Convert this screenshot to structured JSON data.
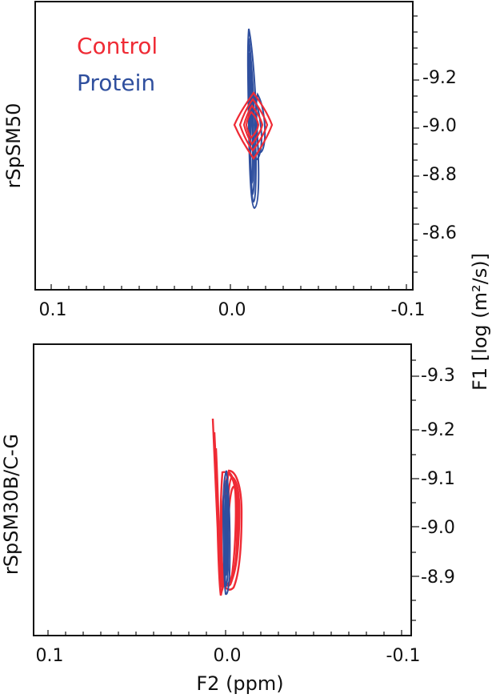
{
  "colors": {
    "control": "#ef2b35",
    "protein": "#2f4f9e",
    "axis": "#111111"
  },
  "legend": [
    {
      "label": "Control",
      "color": "#ef2b35"
    },
    {
      "label": "Protein",
      "color": "#2f4f9e"
    }
  ],
  "shared_axes": {
    "xlabel": "F2 (ppm)",
    "ylabel": "F1 [log (m²/s)]"
  },
  "chart_data": [
    {
      "type": "contour",
      "panel_label": "rSpSM50",
      "panel_label_color": "#2f4f9e",
      "xlim": [
        0.1,
        -0.1
      ],
      "ylim": [
        -9.43,
        -8.41
      ],
      "x_ticks": [
        "0.1",
        "0.0",
        "-0.1"
      ],
      "y_ticks": [
        "-9.2",
        "-9.0",
        "-8.8",
        "-8.6"
      ],
      "y_tick_values": [
        -9.2,
        -9.0,
        -8.8,
        -8.6
      ],
      "series": [
        {
          "name": "Protein",
          "color": "#2f4f9e",
          "peaks": [
            {
              "x": -0.002,
              "y": -9.0,
              "x_halfwidth": 0.006,
              "y_halfwidth": 0.32
            }
          ]
        },
        {
          "name": "Control",
          "color": "#ef2b35",
          "peaks": [
            {
              "x": -0.003,
              "y": -9.0,
              "x_halfwidth": 0.014,
              "y_halfwidth": 0.11
            }
          ]
        }
      ]
    },
    {
      "type": "contour",
      "panel_label": "rSpSM30B/C-G",
      "panel_label_color": "#111111",
      "xlim": [
        0.1,
        -0.1
      ],
      "ylim": [
        -9.38,
        -8.77
      ],
      "x_ticks": [
        "0.1",
        "0.0",
        "-0.1"
      ],
      "y_ticks": [
        "-9.3",
        "-9.2",
        "-9.1",
        "-9.0",
        "-8.9"
      ],
      "y_tick_values": [
        -9.3,
        -9.2,
        -9.1,
        -9.0,
        -8.9
      ],
      "series": [
        {
          "name": "Control",
          "color": "#ef2b35",
          "peaks": [
            {
              "x": 0.0,
              "y": -9.04,
              "x_halfwidth": 0.01,
              "y_halfwidth": 0.16
            }
          ]
        },
        {
          "name": "Protein",
          "color": "#2f4f9e",
          "peaks": [
            {
              "x": 0.0,
              "y": -8.99,
              "x_halfwidth": 0.003,
              "y_halfwidth": 0.12
            }
          ]
        }
      ]
    }
  ]
}
